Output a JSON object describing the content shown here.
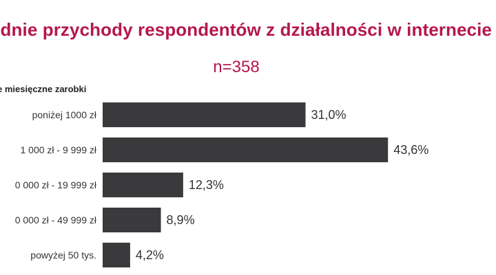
{
  "title": "ednie przychody respondentów z działalności w internecie",
  "subtitle": "n=358",
  "chart_data": {
    "type": "bar",
    "orientation": "horizontal",
    "category_header": "e miesięczne zarobki",
    "categories": [
      "poniżej 1000 zł",
      "1 000 zł - 9 999 zł",
      "0 000 zł - 19 999 zł",
      "0 000 zł - 49 999 zł",
      "powyżej 50 tys."
    ],
    "values": [
      31.0,
      43.6,
      12.3,
      8.9,
      4.2
    ],
    "value_labels": [
      "31,0%",
      "43,6%",
      "12,3%",
      "8,9%",
      "4,2%"
    ],
    "bar_color": "#3a3a3c",
    "title_color": "#b5174c",
    "grid": false,
    "legend": "none"
  }
}
